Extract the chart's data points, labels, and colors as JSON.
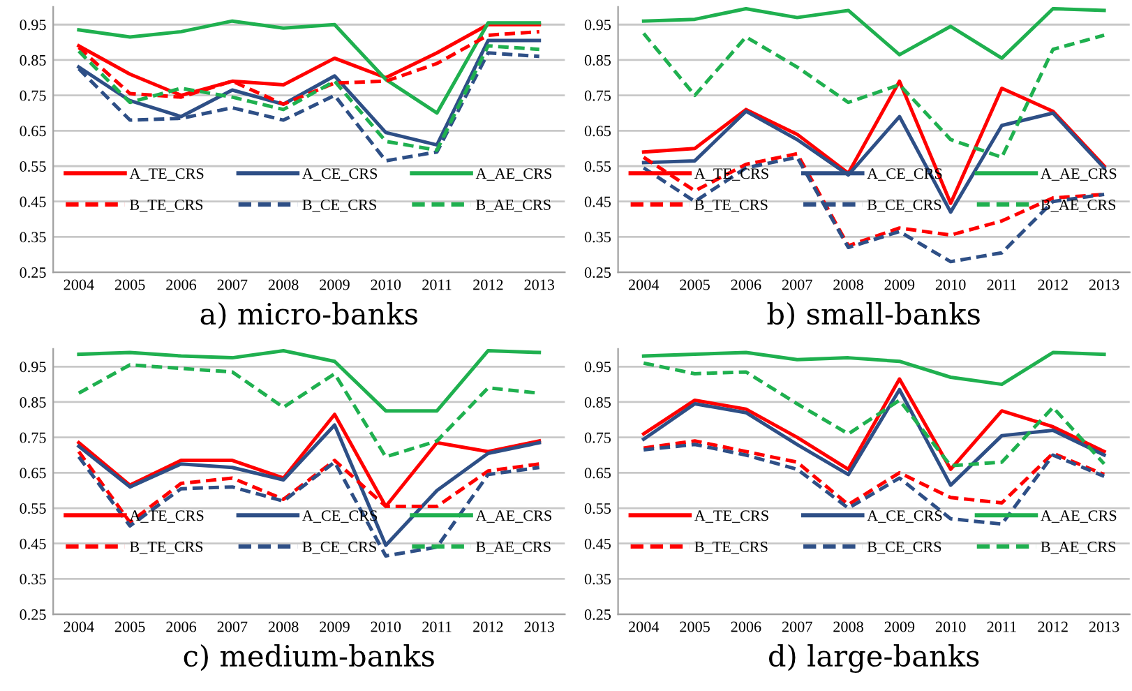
{
  "chart_data": [
    {
      "type": "line",
      "title": "a) micro-banks",
      "categories": [
        "2004",
        "2005",
        "2006",
        "2007",
        "2008",
        "2009",
        "2010",
        "2011",
        "2012",
        "2013"
      ],
      "ylim": [
        0.25,
        1.0
      ],
      "yticks": [
        {
          "value": 0.25,
          "label": "0.25"
        },
        {
          "value": 0.35,
          "label": "0.35"
        },
        {
          "value": 0.45,
          "label": "0.45"
        },
        {
          "value": 0.55,
          "label": "0.55"
        },
        {
          "value": 0.65,
          "label": "0.65"
        },
        {
          "value": 0.75,
          "label": "0.75"
        },
        {
          "value": 0.85,
          "label": "0.85"
        },
        {
          "value": 0.95,
          "label": "0.95"
        }
      ],
      "grid": "y",
      "legend": "bottom",
      "series": [
        {
          "name": "A_TE_CRS",
          "color": "#ff0000",
          "line_style": "solid",
          "values": [
            0.89,
            0.81,
            0.75,
            0.79,
            0.78,
            0.855,
            0.8,
            0.87,
            0.95,
            0.95
          ]
        },
        {
          "name": "A_CE_CRS",
          "color": "#2e4f86",
          "line_style": "solid",
          "values": [
            0.83,
            0.735,
            0.69,
            0.765,
            0.725,
            0.805,
            0.645,
            0.61,
            0.905,
            0.905
          ]
        },
        {
          "name": "A_AE_CRS",
          "color": "#1fb04f",
          "line_style": "solid",
          "values": [
            0.935,
            0.915,
            0.93,
            0.96,
            0.94,
            0.95,
            0.795,
            0.7,
            0.955,
            0.955
          ]
        },
        {
          "name": "B_TE_CRS",
          "color": "#ff0000",
          "line_style": "dashed",
          "values": [
            0.885,
            0.755,
            0.745,
            0.79,
            0.725,
            0.785,
            0.79,
            0.84,
            0.92,
            0.93
          ]
        },
        {
          "name": "B_CE_CRS",
          "color": "#2e4f86",
          "line_style": "dashed",
          "values": [
            0.825,
            0.68,
            0.685,
            0.715,
            0.68,
            0.75,
            0.565,
            0.59,
            0.87,
            0.86
          ]
        },
        {
          "name": "B_AE_CRS",
          "color": "#1fb04f",
          "line_style": "dashed",
          "values": [
            0.875,
            0.73,
            0.77,
            0.745,
            0.71,
            0.79,
            0.62,
            0.595,
            0.89,
            0.88
          ]
        }
      ]
    },
    {
      "type": "line",
      "title": "b) small-banks",
      "categories": [
        "2004",
        "2005",
        "2006",
        "2007",
        "2008",
        "2009",
        "2010",
        "2011",
        "2012",
        "2013"
      ],
      "ylim": [
        0.25,
        1.0
      ],
      "yticks": [
        {
          "value": 0.25,
          "label": "0.25"
        },
        {
          "value": 0.35,
          "label": "0.35"
        },
        {
          "value": 0.45,
          "label": "0.45"
        },
        {
          "value": 0.55,
          "label": "0.55"
        },
        {
          "value": 0.65,
          "label": "0.65"
        },
        {
          "value": 0.75,
          "label": "0.75"
        },
        {
          "value": 0.85,
          "label": "0.85"
        },
        {
          "value": 0.95,
          "label": "0.95"
        }
      ],
      "grid": "y",
      "legend": "bottom",
      "series": [
        {
          "name": "A_TE_CRS",
          "color": "#ff0000",
          "line_style": "solid",
          "values": [
            0.59,
            0.6,
            0.71,
            0.64,
            0.53,
            0.79,
            0.445,
            0.77,
            0.705,
            0.55
          ]
        },
        {
          "name": "A_CE_CRS",
          "color": "#2e4f86",
          "line_style": "solid",
          "values": [
            0.56,
            0.565,
            0.705,
            0.625,
            0.525,
            0.69,
            0.42,
            0.665,
            0.7,
            0.545
          ]
        },
        {
          "name": "A_AE_CRS",
          "color": "#1fb04f",
          "line_style": "solid",
          "values": [
            0.96,
            0.965,
            0.995,
            0.97,
            0.99,
            0.865,
            0.945,
            0.855,
            0.995,
            0.99
          ]
        },
        {
          "name": "B_TE_CRS",
          "color": "#ff0000",
          "line_style": "dashed",
          "values": [
            0.575,
            0.48,
            0.555,
            0.585,
            0.325,
            0.375,
            0.355,
            0.395,
            0.46,
            0.47
          ]
        },
        {
          "name": "B_CE_CRS",
          "color": "#2e4f86",
          "line_style": "dashed",
          "values": [
            0.545,
            0.45,
            0.545,
            0.575,
            0.32,
            0.365,
            0.28,
            0.305,
            0.45,
            0.47
          ]
        },
        {
          "name": "B_AE_CRS",
          "color": "#1fb04f",
          "line_style": "dashed",
          "values": [
            0.925,
            0.75,
            0.915,
            0.83,
            0.73,
            0.78,
            0.625,
            0.575,
            0.88,
            0.92
          ]
        }
      ]
    },
    {
      "type": "line",
      "title": "c) medium-banks",
      "categories": [
        "2004",
        "2005",
        "2006",
        "2007",
        "2008",
        "2009",
        "2010",
        "2011",
        "2012",
        "2013"
      ],
      "ylim": [
        0.25,
        1.0
      ],
      "yticks": [
        {
          "value": 0.25,
          "label": "0.25"
        },
        {
          "value": 0.35,
          "label": "0.35"
        },
        {
          "value": 0.45,
          "label": "0.45"
        },
        {
          "value": 0.55,
          "label": "0.55"
        },
        {
          "value": 0.65,
          "label": "0.65"
        },
        {
          "value": 0.75,
          "label": "0.75"
        },
        {
          "value": 0.85,
          "label": "0.85"
        },
        {
          "value": 0.95,
          "label": "0.95"
        }
      ],
      "grid": "y",
      "legend": "bottom",
      "series": [
        {
          "name": "A_TE_CRS",
          "color": "#ff0000",
          "line_style": "solid",
          "values": [
            0.735,
            0.615,
            0.685,
            0.685,
            0.635,
            0.815,
            0.555,
            0.735,
            0.71,
            0.74
          ]
        },
        {
          "name": "A_CE_CRS",
          "color": "#2e4f86",
          "line_style": "solid",
          "values": [
            0.725,
            0.61,
            0.675,
            0.665,
            0.63,
            0.785,
            0.445,
            0.6,
            0.705,
            0.735
          ]
        },
        {
          "name": "A_AE_CRS",
          "color": "#1fb04f",
          "line_style": "solid",
          "values": [
            0.985,
            0.99,
            0.98,
            0.975,
            0.995,
            0.965,
            0.825,
            0.825,
            0.995,
            0.99
          ]
        },
        {
          "name": "B_TE_CRS",
          "color": "#ff0000",
          "line_style": "dashed",
          "values": [
            0.71,
            0.51,
            0.62,
            0.635,
            0.575,
            0.685,
            0.555,
            0.555,
            0.655,
            0.675
          ]
        },
        {
          "name": "B_CE_CRS",
          "color": "#2e4f86",
          "line_style": "dashed",
          "values": [
            0.695,
            0.5,
            0.605,
            0.61,
            0.57,
            0.68,
            0.415,
            0.44,
            0.645,
            0.665
          ]
        },
        {
          "name": "B_AE_CRS",
          "color": "#1fb04f",
          "line_style": "dashed",
          "values": [
            0.875,
            0.955,
            0.945,
            0.935,
            0.835,
            0.93,
            0.695,
            0.74,
            0.89,
            0.875
          ]
        }
      ]
    },
    {
      "type": "line",
      "title": "d) large-banks",
      "categories": [
        "2004",
        "2005",
        "2006",
        "2007",
        "2008",
        "2009",
        "2010",
        "2011",
        "2012",
        "2013"
      ],
      "ylim": [
        0.25,
        1.0
      ],
      "yticks": [
        {
          "value": 0.25,
          "label": "0.25"
        },
        {
          "value": 0.35,
          "label": "0.35"
        },
        {
          "value": 0.45,
          "label": "0.45"
        },
        {
          "value": 0.55,
          "label": "0.55"
        },
        {
          "value": 0.65,
          "label": "0.65"
        },
        {
          "value": 0.75,
          "label": "0.75"
        },
        {
          "value": 0.85,
          "label": "0.85"
        },
        {
          "value": 0.95,
          "label": "0.95"
        }
      ],
      "grid": "y",
      "legend": "bottom",
      "series": [
        {
          "name": "A_TE_CRS",
          "color": "#ff0000",
          "line_style": "solid",
          "values": [
            0.76,
            0.855,
            0.83,
            0.75,
            0.66,
            0.915,
            0.66,
            0.825,
            0.78,
            0.71
          ]
        },
        {
          "name": "A_CE_CRS",
          "color": "#2e4f86",
          "line_style": "solid",
          "values": [
            0.745,
            0.845,
            0.82,
            0.73,
            0.645,
            0.885,
            0.615,
            0.755,
            0.77,
            0.7
          ]
        },
        {
          "name": "A_AE_CRS",
          "color": "#1fb04f",
          "line_style": "solid",
          "values": [
            0.98,
            0.985,
            0.99,
            0.97,
            0.975,
            0.965,
            0.92,
            0.9,
            0.99,
            0.985
          ]
        },
        {
          "name": "B_TE_CRS",
          "color": "#ff0000",
          "line_style": "dashed",
          "values": [
            0.72,
            0.74,
            0.71,
            0.68,
            0.56,
            0.65,
            0.58,
            0.565,
            0.705,
            0.645
          ]
        },
        {
          "name": "B_CE_CRS",
          "color": "#2e4f86",
          "line_style": "dashed",
          "values": [
            0.715,
            0.73,
            0.7,
            0.66,
            0.55,
            0.635,
            0.52,
            0.505,
            0.7,
            0.64
          ]
        },
        {
          "name": "B_AE_CRS",
          "color": "#1fb04f",
          "line_style": "dashed",
          "values": [
            0.96,
            0.93,
            0.935,
            0.845,
            0.76,
            0.855,
            0.67,
            0.68,
            0.835,
            0.675
          ]
        }
      ]
    }
  ]
}
